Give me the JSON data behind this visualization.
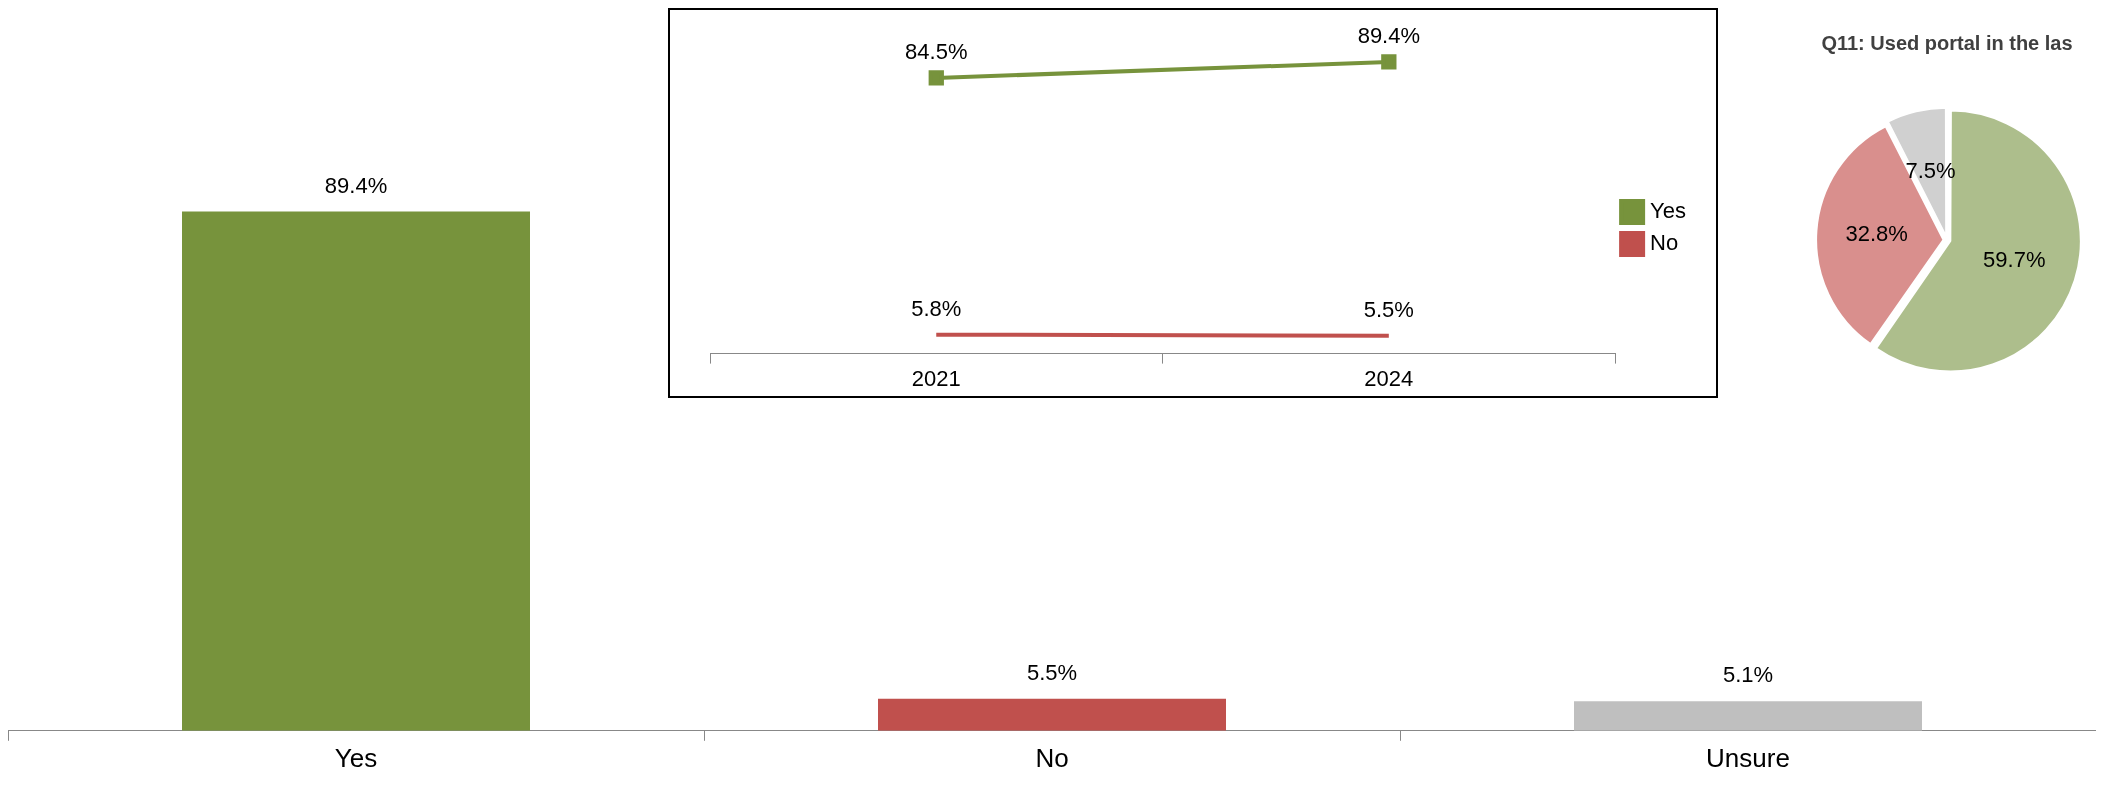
{
  "chart_data": [
    {
      "type": "bar",
      "categories": [
        "Yes",
        "No",
        "Unsure"
      ],
      "values": [
        89.4,
        5.5,
        5.1
      ],
      "colors": [
        "#77933c",
        "#c0504d",
        "#bfbfbf"
      ],
      "value_labels": [
        "89.4%",
        "5.5%",
        "5.1%"
      ],
      "tick_labels": "x",
      "grid": false,
      "legend": false
    },
    {
      "type": "line",
      "categories": [
        "2021",
        "2024"
      ],
      "tick_labels": "x",
      "grid": false,
      "legend": "right",
      "series": [
        {
          "name": "Yes",
          "color": "#77933c",
          "values": [
            84.5,
            89.4
          ],
          "value_labels": [
            "84.5%",
            "89.4%"
          ],
          "marker": "square"
        },
        {
          "name": "No",
          "color": "#c0504d",
          "values": [
            5.8,
            5.5
          ],
          "value_labels": [
            "5.8%",
            "5.5%"
          ],
          "marker": "none"
        }
      ]
    },
    {
      "type": "pie",
      "title": "Q11: Used portal in the las",
      "categories": [
        null,
        null,
        null
      ],
      "values": [
        59.7,
        32.8,
        7.5
      ],
      "colors": [
        "#adbe8c",
        "#d98f8d",
        "#d0d0d0"
      ],
      "value_labels": [
        "59.7%",
        "32.8%",
        "7.5%"
      ],
      "legend": false
    }
  ]
}
